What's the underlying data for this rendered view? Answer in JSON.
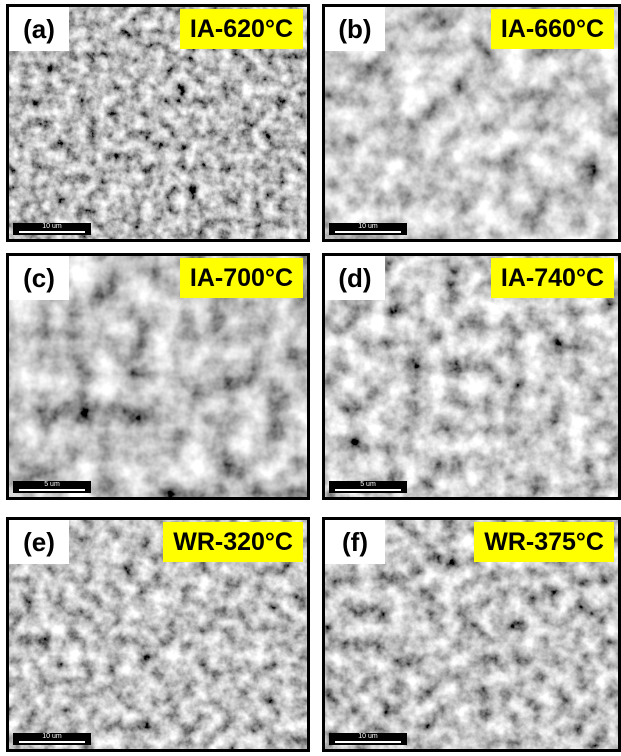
{
  "panels": [
    {
      "label": "(a)",
      "condition": "IA-620°C",
      "scale_bar": "10 um"
    },
    {
      "label": "(b)",
      "condition": "IA-660°C",
      "scale_bar": "10 um"
    },
    {
      "label": "(c)",
      "condition": "IA-700°C",
      "scale_bar": "5 um"
    },
    {
      "label": "(d)",
      "condition": "IA-740°C",
      "scale_bar": "5 um"
    },
    {
      "label": "(e)",
      "condition": "WR-320°C",
      "scale_bar": "10 um"
    },
    {
      "label": "(f)",
      "condition": "WR-375°C",
      "scale_bar": "10 um"
    }
  ]
}
